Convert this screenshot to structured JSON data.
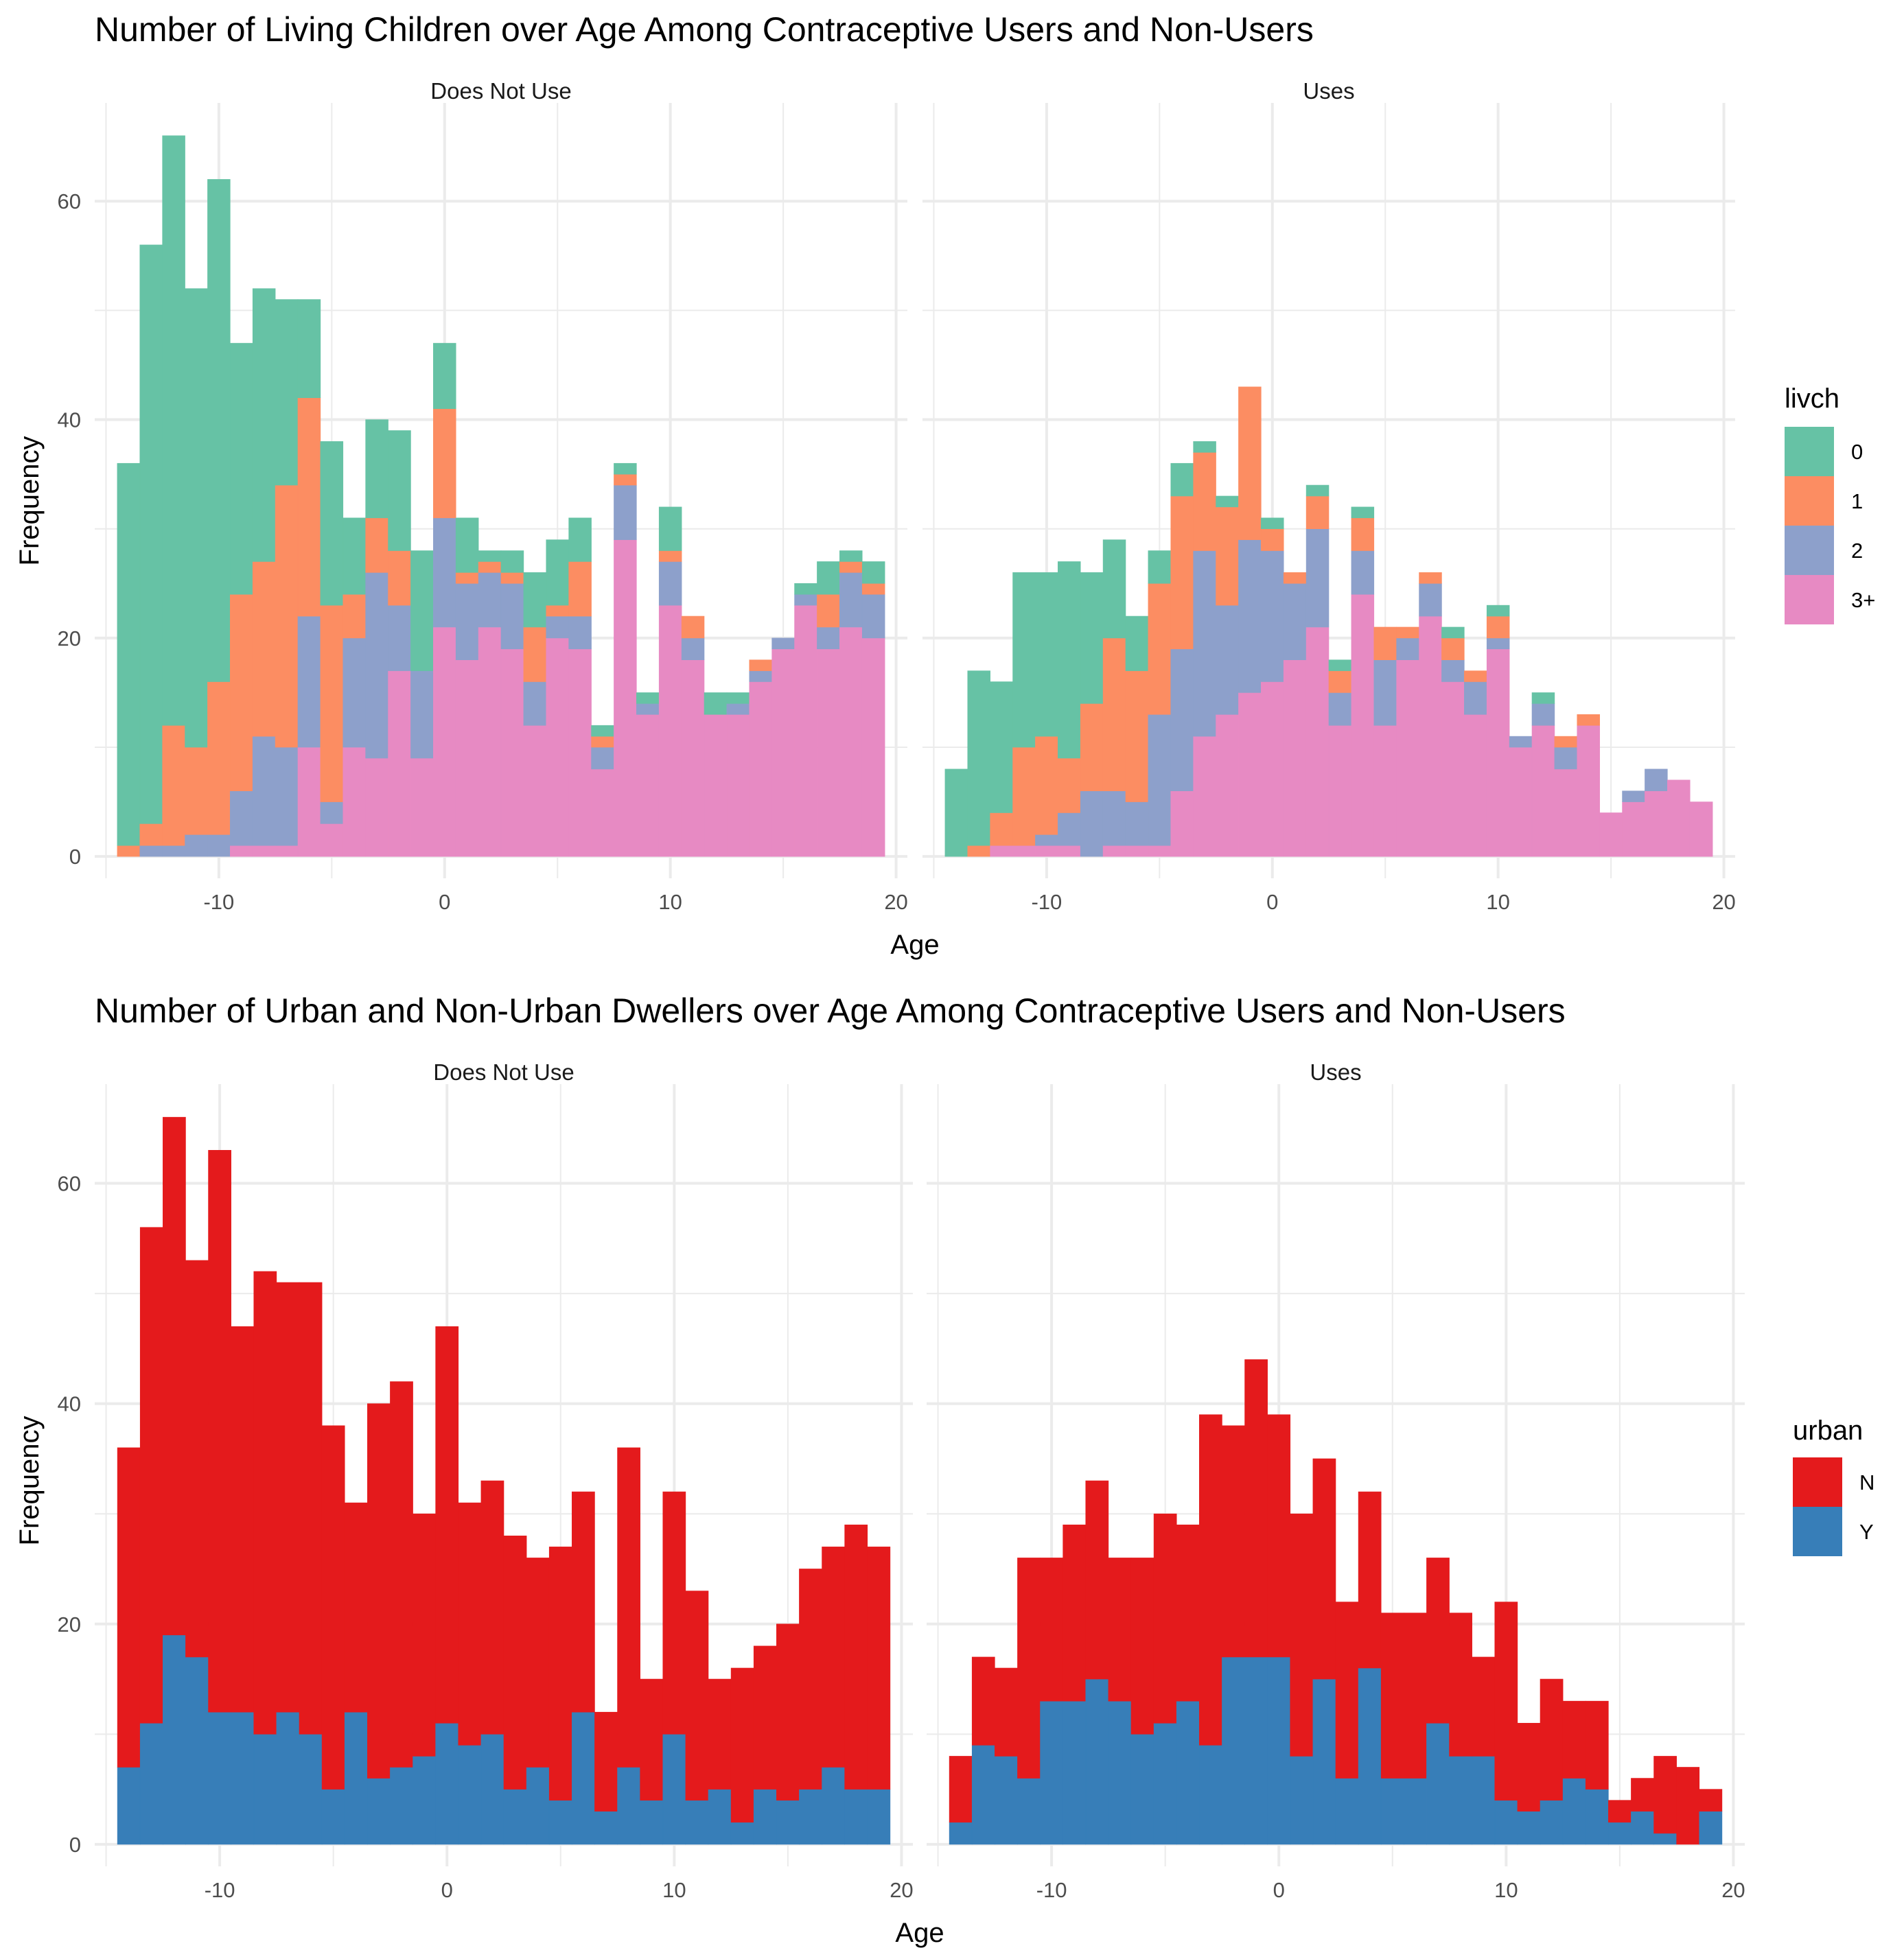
{
  "charts": [
    {
      "title": "Number of Living Children over Age Among Contraceptive Users and Non-Users",
      "x_label": "Age",
      "y_label": "Frequency",
      "legend_title": "livch",
      "panels": [
        {
          "label": "Does Not Use"
        },
        {
          "label": "Uses"
        }
      ],
      "legend": [
        {
          "label": "0",
          "color": "#66C2A5"
        },
        {
          "label": "1",
          "color": "#FC8D62"
        },
        {
          "label": "2",
          "color": "#8DA0CB"
        },
        {
          "label": "3+",
          "color": "#E78AC3"
        }
      ]
    },
    {
      "title": "Number of Urban and Non-Urban Dwellers over Age Among Contraceptive Users and Non-Users",
      "x_label": "Age",
      "y_label": "Frequency",
      "legend_title": "urban",
      "panels": [
        {
          "label": "Does Not Use"
        },
        {
          "label": "Uses"
        }
      ],
      "legend": [
        {
          "label": "N",
          "color": "#E41A1C"
        },
        {
          "label": "Y",
          "color": "#377EB8"
        }
      ]
    }
  ],
  "chart_data": [
    {
      "type": "bar",
      "stacked": true,
      "title": "Number of Living Children over Age Among Contraceptive Users and Non-Users",
      "xlabel": "Age",
      "ylabel": "Frequency",
      "xlim": [
        -15.5,
        20.5
      ],
      "ylim": [
        -2,
        69
      ],
      "x_ticks": [
        -10,
        0,
        10,
        20
      ],
      "x_tick_labels": [
        "-10",
        "0",
        "10",
        "20"
      ],
      "y_ticks": [
        0,
        20,
        40,
        60
      ],
      "y_tick_labels": [
        "0",
        "20",
        "40",
        "60"
      ],
      "grid": true,
      "legend_position": "right",
      "bin_width": 1,
      "bin_centers": [
        -14,
        -13,
        -12,
        -11,
        -10,
        -9,
        -8,
        -7,
        -6,
        -5,
        -4,
        -3,
        -2,
        -1,
        0,
        1,
        2,
        3,
        4,
        5,
        6,
        7,
        8,
        9,
        10,
        11,
        12,
        13,
        14,
        15,
        16,
        17,
        18,
        19
      ],
      "panels": [
        {
          "label": "Does Not Use",
          "series": [
            {
              "name": "0",
              "values": [
                35,
                53,
                54,
                42,
                46,
                23,
                25,
                17,
                9,
                15,
                7,
                9,
                11,
                11,
                6,
                5,
                1,
                2,
                5,
                6,
                4,
                1,
                1,
                1,
                4,
                0,
                2,
                1,
                0,
                0,
                1,
                3,
                1,
                2
              ]
            },
            {
              "name": "1",
              "values": [
                1,
                2,
                11,
                8,
                14,
                18,
                16,
                24,
                20,
                18,
                4,
                5,
                5,
                0,
                10,
                1,
                1,
                1,
                5,
                1,
                5,
                1,
                1,
                0,
                1,
                2,
                0,
                0,
                1,
                0,
                0,
                3,
                1,
                1
              ]
            },
            {
              "name": "2",
              "values": [
                0,
                1,
                1,
                2,
                2,
                5,
                10,
                9,
                12,
                2,
                10,
                17,
                6,
                8,
                10,
                7,
                5,
                6,
                4,
                2,
                3,
                2,
                5,
                1,
                4,
                2,
                0,
                1,
                1,
                1,
                1,
                2,
                5,
                4
              ]
            },
            {
              "name": "3+",
              "values": [
                0,
                0,
                0,
                0,
                0,
                1,
                1,
                1,
                10,
                3,
                10,
                9,
                17,
                9,
                21,
                18,
                21,
                19,
                12,
                20,
                19,
                8,
                29,
                13,
                23,
                18,
                13,
                13,
                16,
                19,
                23,
                19,
                21,
                20
              ]
            }
          ]
        },
        {
          "label": "Uses",
          "series": [
            {
              "name": "0",
              "values": [
                8,
                16,
                12,
                16,
                15,
                18,
                12,
                9,
                5,
                3,
                3,
                1,
                1,
                0,
                1,
                0,
                1,
                1,
                1,
                0,
                0,
                0,
                1,
                0,
                1,
                0,
                1,
                0,
                0,
                0,
                0,
                0,
                0,
                0
              ]
            },
            {
              "name": "1",
              "values": [
                0,
                1,
                3,
                9,
                9,
                5,
                8,
                14,
                12,
                12,
                14,
                9,
                9,
                14,
                2,
                1,
                3,
                2,
                3,
                3,
                1,
                1,
                2,
                1,
                2,
                0,
                0,
                1,
                1,
                0,
                0,
                0,
                0,
                0
              ]
            },
            {
              "name": "2",
              "values": [
                0,
                0,
                0,
                0,
                1,
                3,
                6,
                5,
                4,
                12,
                13,
                17,
                10,
                14,
                12,
                7,
                9,
                3,
                4,
                6,
                2,
                3,
                2,
                3,
                1,
                1,
                2,
                2,
                0,
                0,
                1,
                2,
                0,
                0
              ]
            },
            {
              "name": "3+",
              "values": [
                0,
                0,
                1,
                1,
                1,
                1,
                0,
                1,
                1,
                1,
                6,
                11,
                13,
                15,
                16,
                18,
                21,
                12,
                24,
                12,
                18,
                22,
                16,
                13,
                19,
                10,
                12,
                8,
                12,
                4,
                5,
                6,
                7,
                5
              ]
            }
          ]
        }
      ]
    },
    {
      "type": "bar",
      "stacked": true,
      "title": "Number of Urban and Non-Urban Dwellers over Age Among Contraceptive Users and Non-Users",
      "xlabel": "Age",
      "ylabel": "Frequency",
      "xlim": [
        -15.5,
        20.5
      ],
      "ylim": [
        -2,
        69
      ],
      "x_ticks": [
        -10,
        0,
        10,
        20
      ],
      "x_tick_labels": [
        "-10",
        "0",
        "10",
        "20"
      ],
      "y_ticks": [
        0,
        20,
        40,
        60
      ],
      "y_tick_labels": [
        "0",
        "20",
        "40",
        "60"
      ],
      "grid": true,
      "legend_position": "right",
      "bin_width": 1,
      "bin_centers": [
        -14,
        -13,
        -12,
        -11,
        -10,
        -9,
        -8,
        -7,
        -6,
        -5,
        -4,
        -3,
        -2,
        -1,
        0,
        1,
        2,
        3,
        4,
        5,
        6,
        7,
        8,
        9,
        10,
        11,
        12,
        13,
        14,
        15,
        16,
        17,
        18,
        19
      ],
      "panels": [
        {
          "label": "Does Not Use",
          "series": [
            {
              "name": "N",
              "values": [
                29,
                45,
                47,
                36,
                51,
                35,
                42,
                39,
                41,
                33,
                19,
                34,
                35,
                22,
                36,
                22,
                23,
                23,
                19,
                23,
                20,
                9,
                29,
                11,
                22,
                19,
                10,
                14,
                13,
                16,
                20,
                20,
                24,
                22
              ]
            },
            {
              "name": "Y",
              "values": [
                7,
                11,
                19,
                17,
                12,
                12,
                10,
                12,
                10,
                5,
                12,
                6,
                7,
                8,
                11,
                9,
                10,
                5,
                7,
                4,
                12,
                3,
                7,
                4,
                10,
                4,
                5,
                2,
                5,
                4,
                5,
                7,
                5,
                5
              ]
            }
          ]
        },
        {
          "label": "Uses",
          "series": [
            {
              "name": "N",
              "values": [
                6,
                8,
                8,
                20,
                13,
                16,
                18,
                13,
                16,
                19,
                16,
                30,
                21,
                27,
                22,
                22,
                20,
                16,
                16,
                15,
                15,
                15,
                13,
                9,
                18,
                8,
                11,
                7,
                8,
                2,
                3,
                7,
                7,
                2
              ]
            },
            {
              "name": "Y",
              "values": [
                2,
                9,
                8,
                6,
                13,
                13,
                15,
                13,
                10,
                11,
                13,
                9,
                17,
                17,
                17,
                8,
                15,
                6,
                16,
                6,
                6,
                11,
                8,
                8,
                4,
                3,
                4,
                6,
                5,
                2,
                3,
                1,
                0,
                3
              ]
            }
          ]
        }
      ]
    }
  ]
}
